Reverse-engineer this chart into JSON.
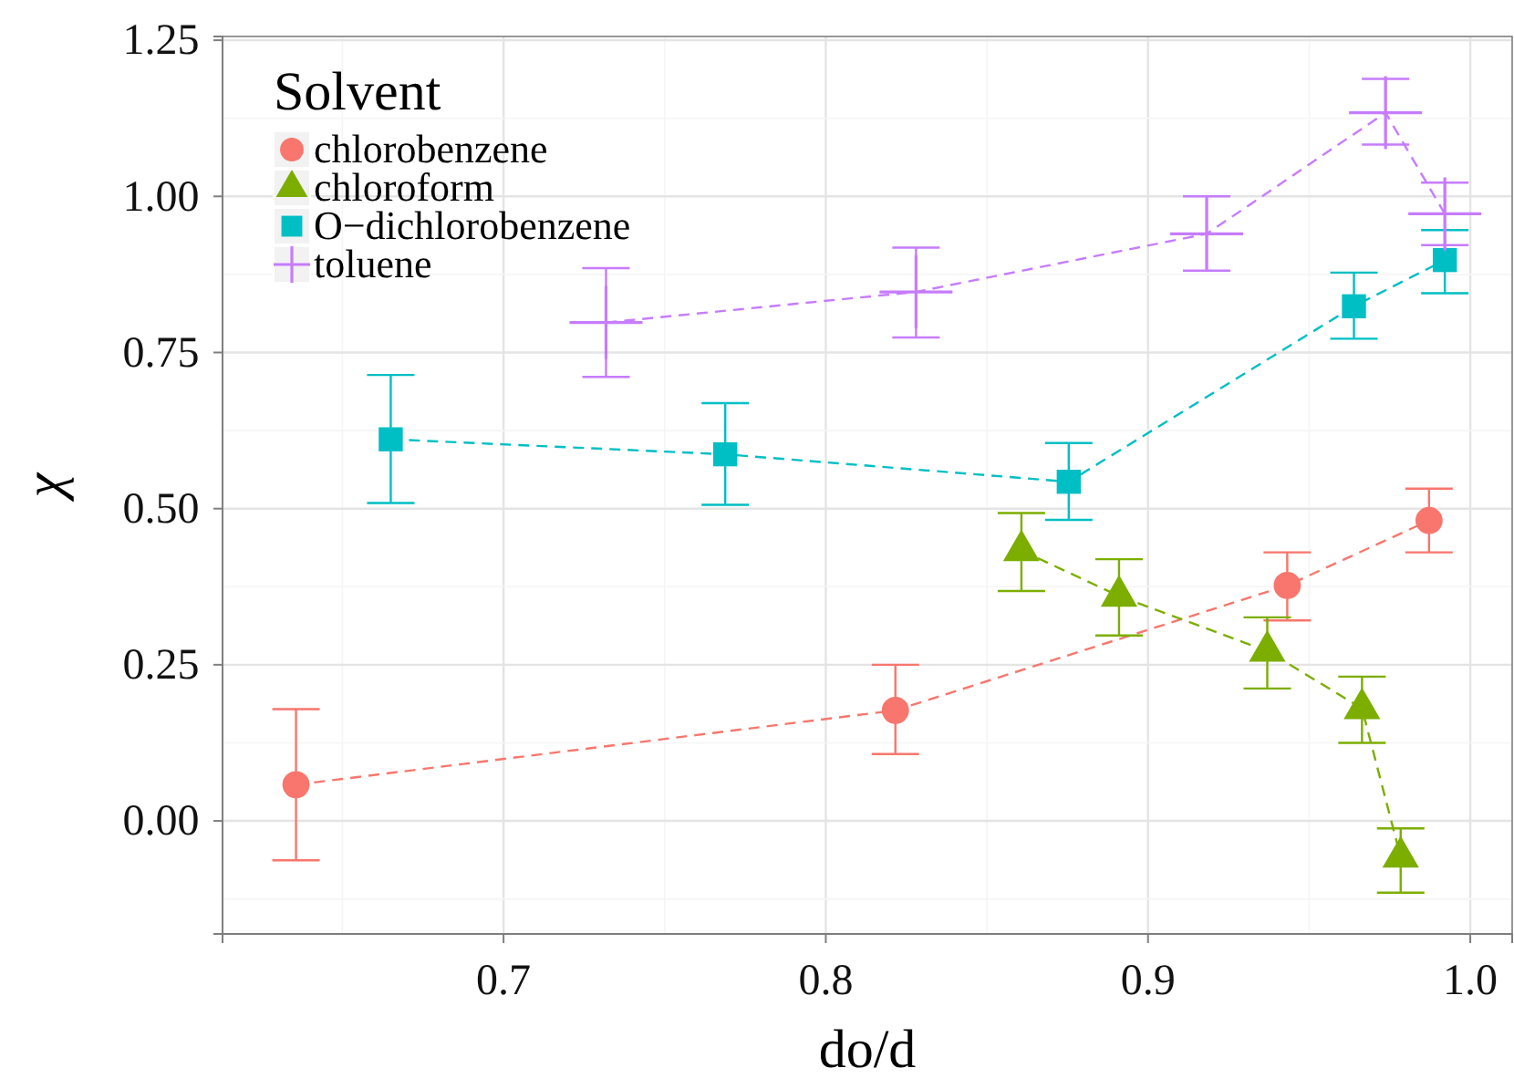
{
  "chart_data": {
    "type": "line",
    "xlabel": "do/d",
    "ylabel": "χ",
    "legend_title": "Solvent",
    "legend": "top left",
    "grid": true,
    "line_style": "dashed",
    "xlim": [
      0.6128,
      1.013
    ],
    "xticks": [
      0.7,
      0.8,
      0.9,
      {
        "value": 1.0,
        "label": "1.0"
      }
    ],
    "ylim": [
      -0.181,
      1.256
    ],
    "yticks": [
      {
        "value": 0,
        "label": "0.00"
      },
      {
        "value": 0.25,
        "label": "0.25"
      },
      {
        "value": 0.5,
        "label": "0.50"
      },
      {
        "value": 0.75,
        "label": "0.75"
      },
      {
        "value": 1.0,
        "label": "1.00"
      },
      {
        "value": 1.25,
        "label": "1.25"
      }
    ],
    "series": [
      {
        "name": "chlorobenzene",
        "color": "#f8766d",
        "marker": "circle",
        "x": [
          0.6356,
          0.8216,
          0.9432,
          0.9872
        ],
        "values": [
          0.058,
          0.177,
          0.377,
          0.481
        ],
        "errors": [
          [
            -0.063,
            0.179
          ],
          [
            0.107,
            0.25
          ],
          [
            0.321,
            0.43
          ],
          [
            0.43,
            0.532
          ]
        ]
      },
      {
        "name": "chloroform",
        "color": "#7cae00",
        "marker": "triangle",
        "x": [
          0.8607,
          0.891,
          0.937,
          0.9664,
          0.9784
        ],
        "values": [
          0.433,
          0.36,
          0.272,
          0.18,
          -0.058
        ],
        "errors": [
          [
            0.368,
            0.493
          ],
          [
            0.297,
            0.419
          ],
          [
            0.212,
            0.326
          ],
          [
            0.125,
            0.231
          ],
          [
            -0.115,
            -0.012
          ]
        ]
      },
      {
        "name": "O−dichlorobenzene",
        "color": "#00bfc4",
        "marker": "square",
        "x": [
          0.665,
          0.7688,
          0.8754,
          0.9639,
          0.9921
        ],
        "values": [
          0.611,
          0.587,
          0.543,
          0.824,
          0.898
        ],
        "errors": [
          [
            0.509,
            0.714
          ],
          [
            0.506,
            0.669
          ],
          [
            0.482,
            0.605
          ],
          [
            0.772,
            0.878
          ],
          [
            0.845,
            0.946
          ]
        ]
      },
      {
        "name": "toluene",
        "color": "#c77cff",
        "marker": "cross",
        "x": [
          0.7318,
          0.828,
          0.9182,
          0.9737,
          0.9921
        ],
        "values": [
          0.798,
          0.847,
          0.94,
          1.134,
          0.972
        ],
        "errors": [
          [
            0.711,
            0.885
          ],
          [
            0.774,
            0.918
          ],
          [
            0.881,
            1.0
          ],
          [
            1.083,
            1.188
          ],
          [
            0.922,
            1.022
          ]
        ]
      }
    ]
  }
}
